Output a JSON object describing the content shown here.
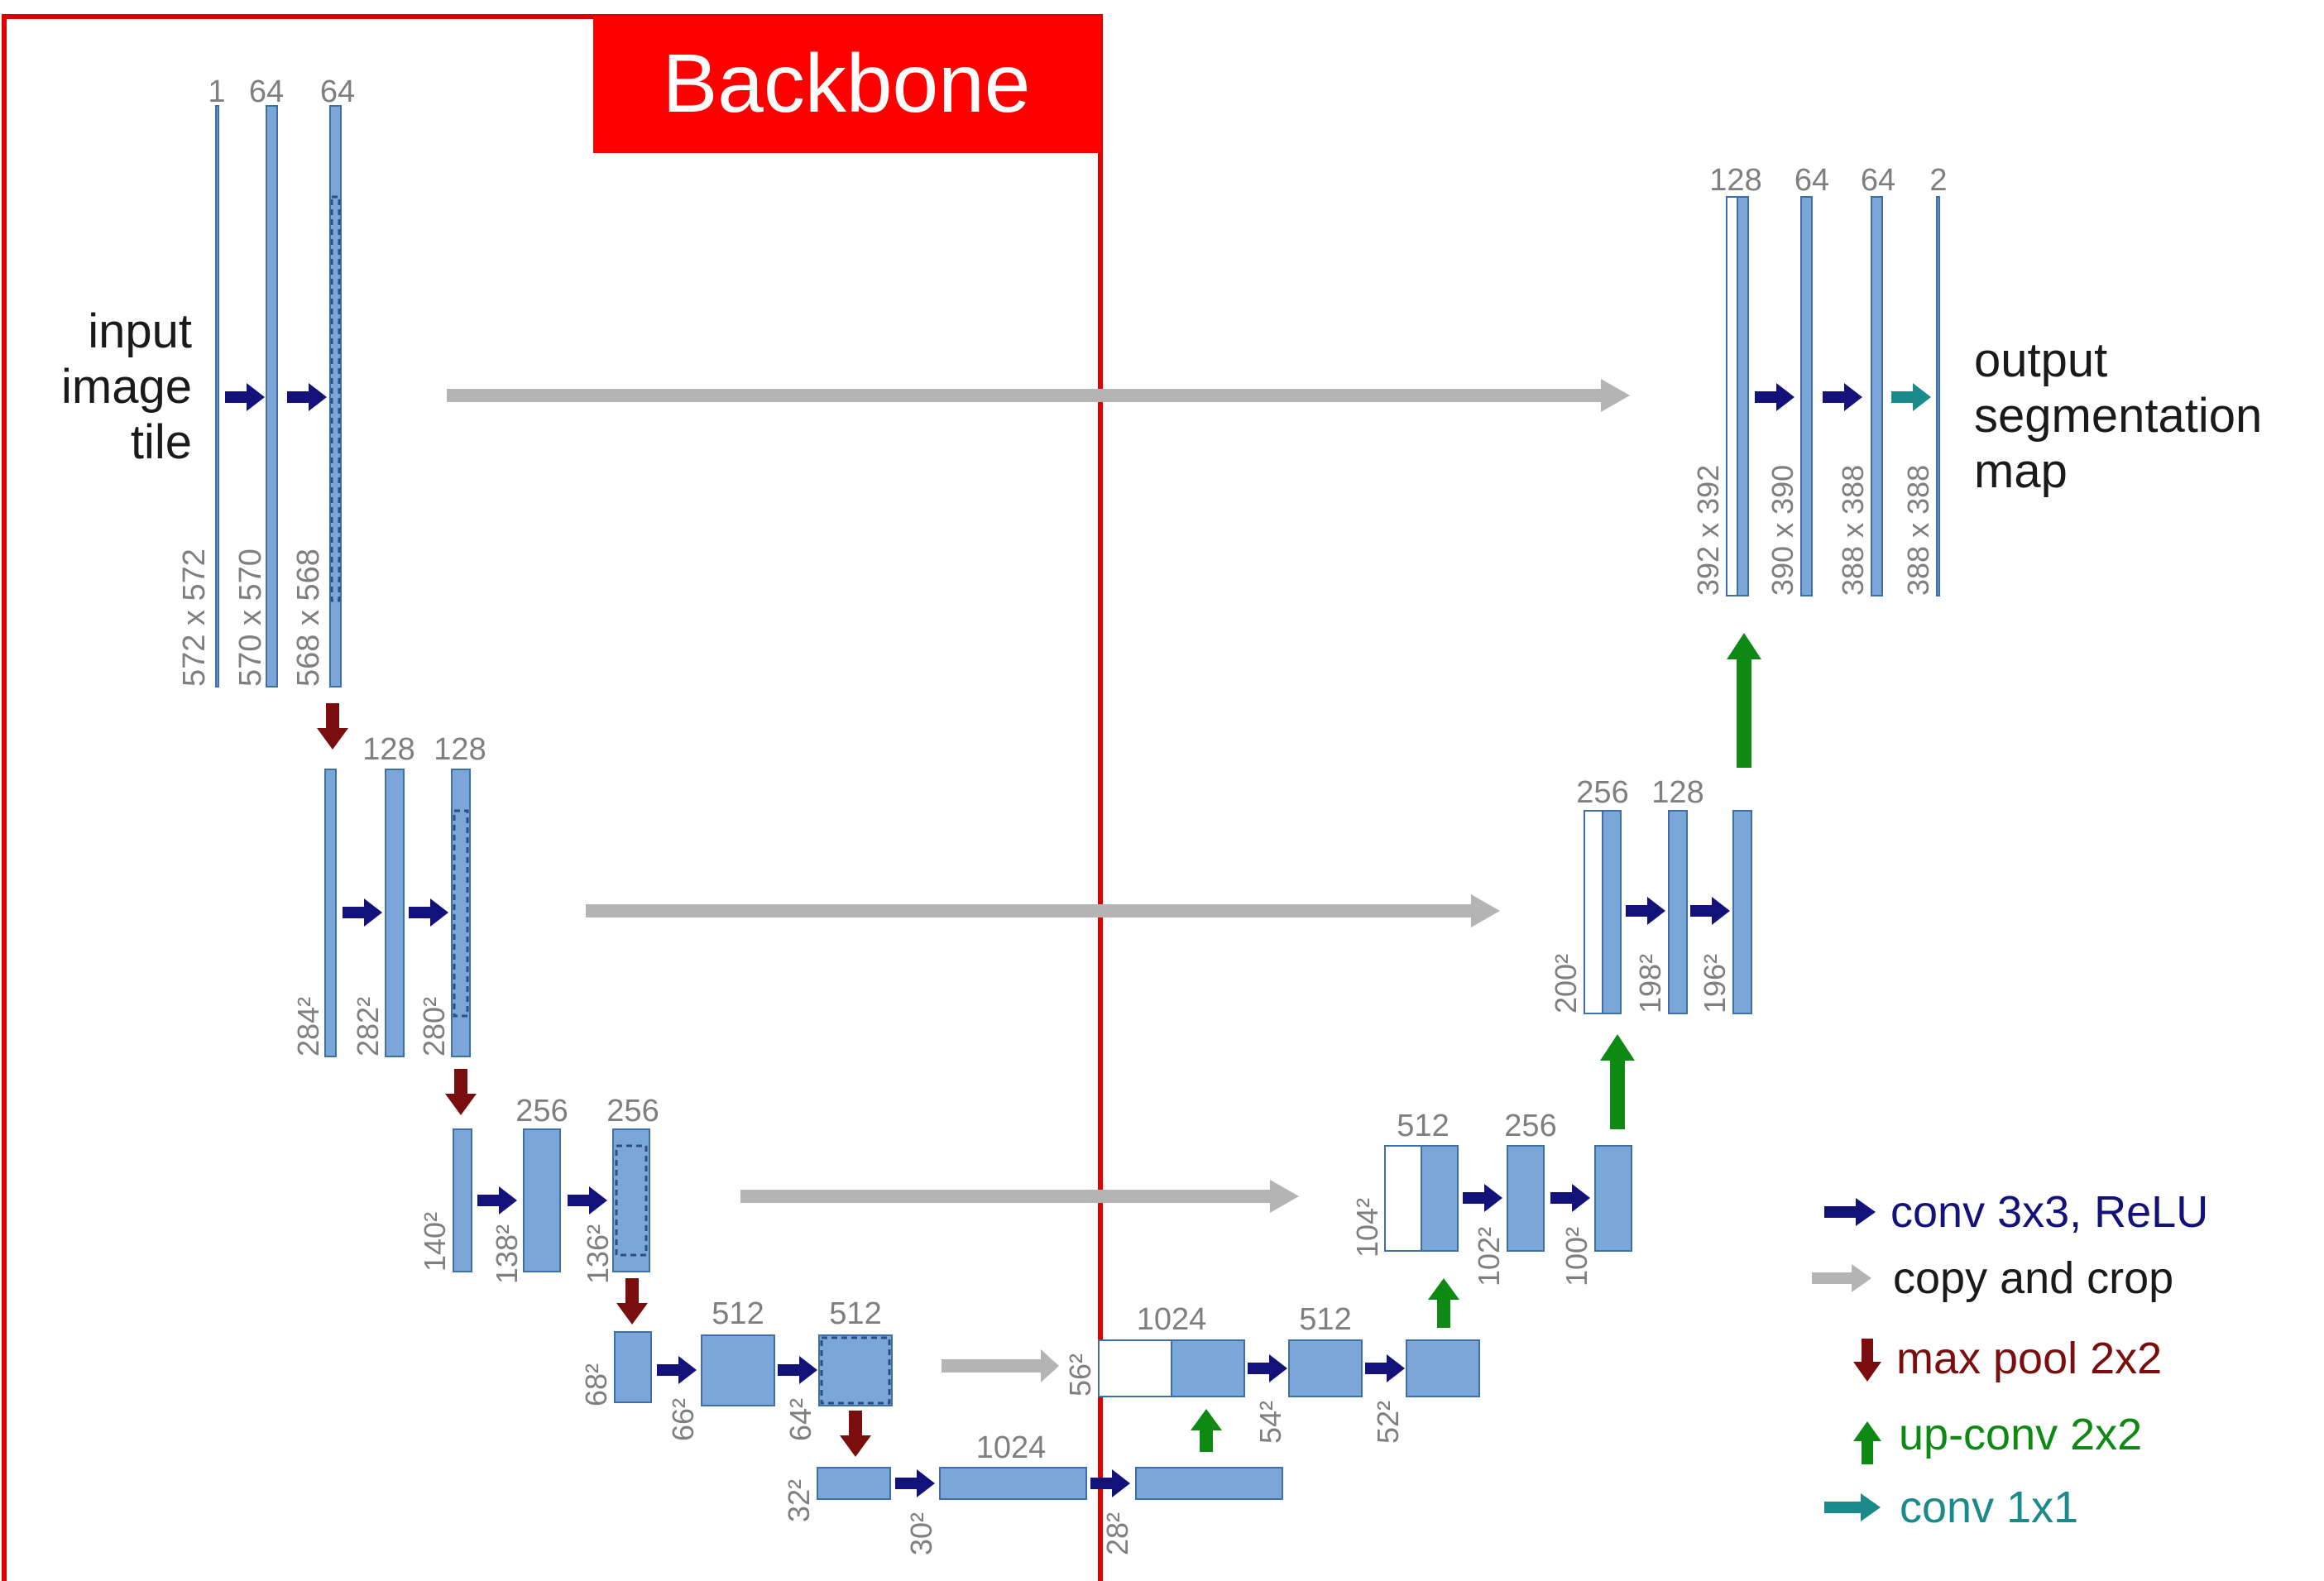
{
  "backbone_label": "Backbone",
  "input_label": [
    "input",
    "image",
    "tile"
  ],
  "output_label": [
    "output",
    "segmentation",
    "map"
  ],
  "colors": {
    "feature_map": "#7aa6d8",
    "feature_map_border": "#3e6fa8",
    "conv": "#12127a",
    "copy": "#b4b4b4",
    "maxpool": "#7a0e0e",
    "upconv": "#0e8a14",
    "conv1x1": "#1a8a8a",
    "backbone": "#e10000"
  },
  "channels": {
    "l1_in": "1",
    "l1_a": "64",
    "l1_b": "64",
    "l2_a": "128",
    "l2_b": "128",
    "l3_a": "256",
    "l3_b": "256",
    "l4_a": "512",
    "l4_b": "512",
    "bottom": "1024",
    "u4_up": "1024",
    "u4_b": "512",
    "u3_up": "512",
    "u3_b": "256",
    "u2_up": "256",
    "u2_b": "128",
    "u1_up": "128",
    "u1_a": "64",
    "u1_b": "64",
    "u1_out": "2"
  },
  "dims": {
    "l1_in": "572 x 572",
    "l1_a": "570 x 570",
    "l1_b": "568 x 568",
    "l2_in": "284²",
    "l2_a": "282²",
    "l2_b": "280²",
    "l3_in": "140²",
    "l3_a": "138²",
    "l3_b": "136²",
    "l4_in": "68²",
    "l4_a": "66²",
    "l4_b": "64²",
    "b_in": "32²",
    "b_a": "30²",
    "b_b": "28²",
    "u4_in": "56²",
    "u4_a": "54²",
    "u4_b": "52²",
    "u3_in": "104²",
    "u3_a": "102²",
    "u3_b": "100²",
    "u2_in": "200²",
    "u2_a": "198²",
    "u2_b": "196²",
    "u1_in": "392 x 392",
    "u1_a": "390 x 390",
    "u1_b": "388 x 388",
    "u1_out": "388 x 388"
  },
  "legend": [
    {
      "label": "conv 3x3, ReLU",
      "icon": "right-arrow-icon",
      "color": "#12127a"
    },
    {
      "label": "copy and crop",
      "icon": "right-arrow-icon",
      "color": "#b4b4b4"
    },
    {
      "label": "max pool 2x2",
      "icon": "down-arrow-icon",
      "color": "#7a0e0e"
    },
    {
      "label": "up-conv 2x2",
      "icon": "up-arrow-icon",
      "color": "#0e8a14"
    },
    {
      "label": "conv 1x1",
      "icon": "right-arrow-icon",
      "color": "#1a8a8a"
    }
  ]
}
